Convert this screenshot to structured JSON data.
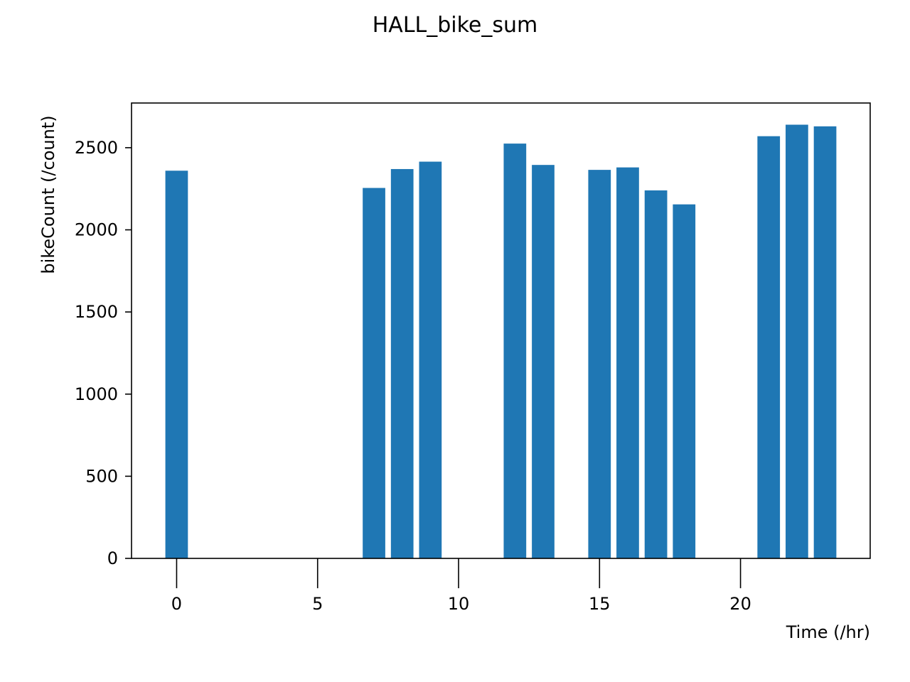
{
  "chart_data": {
    "type": "bar",
    "title": "HALL_bike_sum",
    "xlabel": "Time (/hr)",
    "ylabel": "bikeCount (/count)",
    "x": [
      0,
      7,
      8,
      9,
      12,
      13,
      15,
      16,
      17,
      18,
      21,
      22,
      23
    ],
    "values": [
      2360,
      2255,
      2370,
      2415,
      2525,
      2395,
      2365,
      2380,
      2240,
      2155,
      2570,
      2640,
      2630
    ],
    "xlim": [
      -1.6,
      24.6
    ],
    "ylim": [
      0,
      2772
    ],
    "xticks": [
      0,
      5,
      10,
      15,
      20
    ],
    "yticks": [
      0,
      500,
      1000,
      1500,
      2000,
      2500
    ],
    "bar_color": "#1f77b4",
    "grid": false,
    "legend": "none"
  }
}
